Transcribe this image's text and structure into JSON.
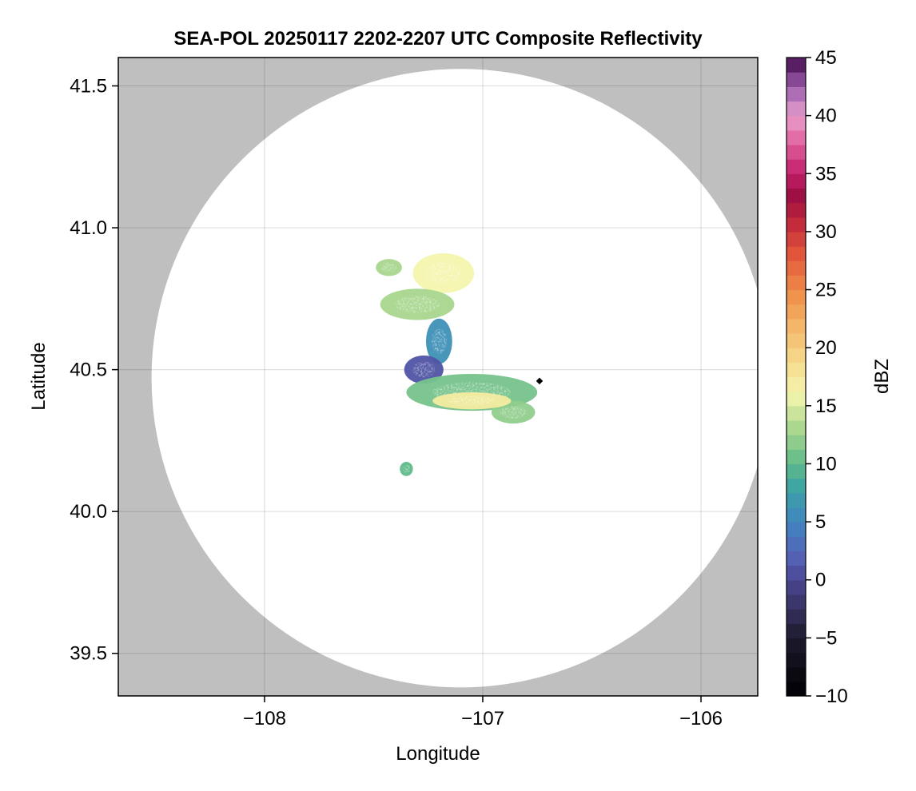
{
  "chart_data": {
    "type": "heatmap",
    "title": "SEA-POL 20250117 2202-2207 UTC Composite Reflectivity",
    "xlabel": "Longitude",
    "ylabel": "Latitude",
    "xlim": [
      -108.67,
      -105.74
    ],
    "ylim": [
      39.35,
      41.6
    ],
    "xticks": [
      -108,
      -107,
      -106
    ],
    "xtick_labels": [
      "−108",
      "−107",
      "−106"
    ],
    "yticks": [
      39.5,
      40.0,
      40.5,
      41.0,
      41.5
    ],
    "ytick_labels": [
      "39.5",
      "40.0",
      "40.5",
      "41.0",
      "41.5"
    ],
    "grid": true,
    "background_color": "#bfbfbf",
    "radar_center": {
      "lon": -107.1,
      "lat": 40.47
    },
    "radar_range_deg_lat": 1.09,
    "radar_site_marker": {
      "lon": -106.74,
      "lat": 40.46
    },
    "colorbar": {
      "label": "dBZ",
      "min": -10,
      "max": 45,
      "ticks": [
        -10,
        -5,
        0,
        5,
        10,
        15,
        20,
        25,
        30,
        35,
        40,
        45
      ],
      "tick_labels": [
        "−10",
        "−5",
        "0",
        "5",
        "10",
        "15",
        "20",
        "25",
        "30",
        "35",
        "40",
        "45"
      ],
      "colormap_stops": [
        {
          "value": -10,
          "color": "#000004"
        },
        {
          "value": -5,
          "color": "#1c1a2c"
        },
        {
          "value": -2,
          "color": "#3a3568"
        },
        {
          "value": 0,
          "color": "#4a4694"
        },
        {
          "value": 2,
          "color": "#5562b4"
        },
        {
          "value": 5,
          "color": "#3f85c1"
        },
        {
          "value": 8,
          "color": "#3ea5a2"
        },
        {
          "value": 10,
          "color": "#5fba8a"
        },
        {
          "value": 13,
          "color": "#a8d68e"
        },
        {
          "value": 16,
          "color": "#f3f5ad"
        },
        {
          "value": 19,
          "color": "#f6d98a"
        },
        {
          "value": 22,
          "color": "#f4b466"
        },
        {
          "value": 25,
          "color": "#ee8a47"
        },
        {
          "value": 28,
          "color": "#e2573b"
        },
        {
          "value": 31,
          "color": "#c0263c"
        },
        {
          "value": 33,
          "color": "#9b0f40"
        },
        {
          "value": 35,
          "color": "#c41d6a"
        },
        {
          "value": 38,
          "color": "#e36ba4"
        },
        {
          "value": 40,
          "color": "#e8a0cc"
        },
        {
          "value": 42,
          "color": "#a96bb5"
        },
        {
          "value": 44,
          "color": "#6a2c7a"
        },
        {
          "value": 45,
          "color": "#3a0840"
        }
      ]
    },
    "echo_regions": [
      {
        "name": "northern-band",
        "center": [
          -107.18,
          40.84
        ],
        "radius": [
          0.14,
          0.07
        ],
        "mean_dbz": 16
      },
      {
        "name": "north-west-fringe",
        "center": [
          -107.43,
          40.86
        ],
        "radius": [
          0.06,
          0.03
        ],
        "mean_dbz": 13
      },
      {
        "name": "mid-band",
        "center": [
          -107.3,
          40.73
        ],
        "radius": [
          0.17,
          0.055
        ],
        "mean_dbz": 13
      },
      {
        "name": "tail",
        "center": [
          -107.2,
          40.6
        ],
        "radius": [
          0.06,
          0.08
        ],
        "mean_dbz": 6
      },
      {
        "name": "dark-core",
        "center": [
          -107.27,
          40.5
        ],
        "radius": [
          0.09,
          0.05
        ],
        "mean_dbz": 1
      },
      {
        "name": "main-cluster",
        "center": [
          -107.05,
          40.42
        ],
        "radius": [
          0.3,
          0.065
        ],
        "mean_dbz": 11
      },
      {
        "name": "south-east-lobe",
        "center": [
          -106.86,
          40.35
        ],
        "radius": [
          0.1,
          0.04
        ],
        "mean_dbz": 12
      },
      {
        "name": "bright-streak",
        "center": [
          -107.05,
          40.39
        ],
        "radius": [
          0.18,
          0.03
        ],
        "mean_dbz": 17
      },
      {
        "name": "isolated-echo",
        "center": [
          -107.35,
          40.15
        ],
        "radius": [
          0.03,
          0.025
        ],
        "mean_dbz": 10
      }
    ]
  }
}
